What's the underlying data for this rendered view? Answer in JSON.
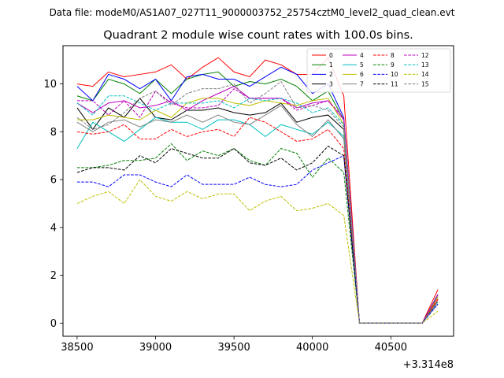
{
  "header": {
    "data_file": "Data file: modeM0/AS1A07_027T11_9000003752_25754cztM0_level2_quad_clean.evt"
  },
  "chart_data": {
    "type": "line",
    "title": "Quadrant 2 module wise count rates with 100.0s bins.",
    "xlabel": "",
    "ylabel": "",
    "x_offset_label": "+3.314e8",
    "x_offset": 331400000,
    "xlim": [
      38410,
      40900
    ],
    "ylim": [
      -0.55,
      11.6
    ],
    "x_ticks": [
      38500,
      39000,
      39500,
      40000,
      40500
    ],
    "y_ticks": [
      0,
      2,
      4,
      6,
      8,
      10
    ],
    "grid": false,
    "legend": {
      "placement": "top-right",
      "columns": 4
    },
    "x": [
      38500,
      38600,
      38700,
      38800,
      38900,
      39000,
      39100,
      39200,
      39300,
      39400,
      39500,
      39600,
      39700,
      39800,
      39900,
      40000,
      40100,
      40200,
      40300,
      40400,
      40500,
      40600,
      40700,
      40800
    ],
    "series": [
      {
        "name": "0",
        "color": "#ff0000",
        "dash": "solid",
        "values": [
          10.0,
          9.9,
          10.5,
          10.3,
          10.4,
          10.5,
          10.8,
          10.2,
          10.7,
          11.1,
          10.5,
          10.3,
          11.0,
          10.8,
          10.4,
          10.4,
          11.1,
          9.5,
          0.0,
          0.0,
          0.0,
          0.0,
          0.0,
          1.4
        ]
      },
      {
        "name": "1",
        "color": "#008000",
        "dash": "solid",
        "values": [
          9.5,
          9.3,
          10.2,
          10.0,
          9.6,
          10.2,
          9.6,
          10.2,
          10.4,
          10.5,
          9.9,
          10.1,
          10.0,
          10.2,
          9.9,
          9.3,
          9.7,
          8.5,
          0.0,
          0.0,
          0.0,
          0.0,
          0.0,
          1.0
        ]
      },
      {
        "name": "2",
        "color": "#0000ff",
        "dash": "solid",
        "values": [
          9.9,
          9.3,
          10.4,
          10.2,
          9.8,
          10.2,
          9.3,
          10.3,
          10.4,
          10.2,
          10.2,
          9.9,
          10.3,
          10.7,
          10.4,
          9.6,
          10.0,
          8.6,
          0.0,
          0.0,
          0.0,
          0.0,
          0.0,
          1.2
        ]
      },
      {
        "name": "3",
        "color": "#000000",
        "dash": "solid",
        "values": [
          9.0,
          8.1,
          9.0,
          8.6,
          9.4,
          8.6,
          8.5,
          8.9,
          8.9,
          9.0,
          8.8,
          8.7,
          8.8,
          9.2,
          8.4,
          8.6,
          8.7,
          8.1,
          0.0,
          0.0,
          0.0,
          0.0,
          0.0,
          1.1
        ]
      },
      {
        "name": "4",
        "color": "#bf00bf",
        "dash": "solid",
        "values": [
          9.2,
          8.8,
          9.2,
          9.3,
          9.0,
          9.1,
          9.3,
          8.9,
          9.3,
          9.6,
          9.9,
          9.4,
          9.4,
          9.4,
          9.0,
          9.2,
          9.3,
          8.5,
          0.0,
          0.0,
          0.0,
          0.0,
          0.0,
          1.0
        ]
      },
      {
        "name": "5",
        "color": "#00bfbf",
        "dash": "solid",
        "values": [
          7.3,
          8.4,
          8.0,
          7.6,
          8.1,
          8.6,
          8.4,
          8.4,
          8.1,
          8.5,
          8.5,
          8.3,
          7.8,
          8.3,
          8.1,
          7.9,
          8.4,
          7.8,
          0.0,
          0.0,
          0.0,
          0.0,
          0.0,
          0.9
        ]
      },
      {
        "name": "6",
        "color": "#bfbf00",
        "dash": "solid",
        "values": [
          8.5,
          8.5,
          8.7,
          8.6,
          8.5,
          8.9,
          8.6,
          9.2,
          9.4,
          9.4,
          9.2,
          9.1,
          9.3,
          9.2,
          9.1,
          9.3,
          9.4,
          8.3,
          0.0,
          0.0,
          0.0,
          0.0,
          0.0,
          1.1
        ]
      },
      {
        "name": "7",
        "color": "#808080",
        "dash": "solid",
        "values": [
          8.4,
          8.0,
          8.4,
          8.5,
          8.2,
          8.5,
          8.4,
          8.7,
          8.4,
          8.7,
          8.4,
          8.3,
          8.7,
          9.1,
          8.3,
          7.8,
          8.5,
          7.7,
          0.0,
          0.0,
          0.0,
          0.0,
          0.0,
          0.8
        ]
      },
      {
        "name": "8",
        "color": "#ff0000",
        "dash": "dashed",
        "values": [
          8.0,
          7.9,
          8.0,
          8.3,
          7.7,
          7.7,
          8.1,
          7.8,
          8.0,
          8.1,
          7.8,
          8.6,
          8.4,
          8.0,
          7.6,
          7.7,
          8.1,
          7.3,
          0.0,
          0.0,
          0.0,
          0.0,
          0.0,
          1.0
        ]
      },
      {
        "name": "9",
        "color": "#008000",
        "dash": "dashed",
        "values": [
          6.5,
          6.5,
          6.6,
          6.8,
          6.8,
          6.9,
          7.5,
          6.8,
          7.2,
          7.0,
          7.3,
          6.8,
          6.6,
          7.3,
          7.1,
          6.1,
          6.9,
          6.3,
          0.0,
          0.0,
          0.0,
          0.0,
          0.0,
          0.9
        ]
      },
      {
        "name": "10",
        "color": "#0000ff",
        "dash": "dashed",
        "values": [
          5.9,
          5.9,
          5.7,
          6.2,
          6.2,
          5.9,
          5.7,
          6.2,
          5.8,
          5.8,
          5.8,
          6.1,
          5.8,
          5.7,
          5.8,
          6.4,
          6.7,
          7.0,
          0.0,
          0.0,
          0.0,
          0.0,
          0.0,
          0.8
        ]
      },
      {
        "name": "11",
        "color": "#000000",
        "dash": "dashed",
        "values": [
          6.3,
          6.5,
          6.5,
          6.4,
          7.0,
          6.7,
          7.3,
          7.1,
          6.9,
          6.9,
          7.3,
          6.7,
          6.6,
          6.9,
          6.4,
          6.7,
          7.4,
          7.0,
          0.0,
          0.0,
          0.0,
          0.0,
          0.0,
          1.2
        ]
      },
      {
        "name": "12",
        "color": "#bf00bf",
        "dash": "dashed",
        "values": [
          9.3,
          9.3,
          8.7,
          9.3,
          8.6,
          9.7,
          9.2,
          9.0,
          9.0,
          9.1,
          9.8,
          9.4,
          9.4,
          9.4,
          8.9,
          9.1,
          9.3,
          8.6,
          0.0,
          0.0,
          0.0,
          0.0,
          0.0,
          1.2
        ]
      },
      {
        "name": "13",
        "color": "#00bfbf",
        "dash": "dashed",
        "values": [
          9.2,
          8.7,
          9.5,
          9.5,
          9.2,
          8.9,
          9.2,
          9.2,
          9.2,
          9.3,
          9.0,
          9.4,
          9.3,
          9.4,
          9.2,
          8.8,
          9.0,
          8.3,
          0.0,
          0.0,
          0.0,
          0.0,
          0.0,
          0.9
        ]
      },
      {
        "name": "14",
        "color": "#bfbf00",
        "dash": "dashed",
        "values": [
          5.0,
          5.3,
          5.5,
          5.0,
          6.0,
          5.3,
          5.1,
          5.5,
          5.2,
          5.4,
          5.4,
          4.7,
          5.1,
          5.3,
          4.7,
          4.8,
          5.0,
          4.5,
          0.0,
          0.0,
          0.0,
          0.0,
          0.0,
          0.5
        ]
      },
      {
        "name": "15",
        "color": "#808080",
        "dash": "dashed",
        "values": [
          8.6,
          8.1,
          8.3,
          8.8,
          9.4,
          9.7,
          9.1,
          9.6,
          9.8,
          9.8,
          10.0,
          9.2,
          9.6,
          10.1,
          9.0,
          9.1,
          8.9,
          8.2,
          0.0,
          0.0,
          0.0,
          0.0,
          0.0,
          0.9
        ]
      }
    ]
  }
}
